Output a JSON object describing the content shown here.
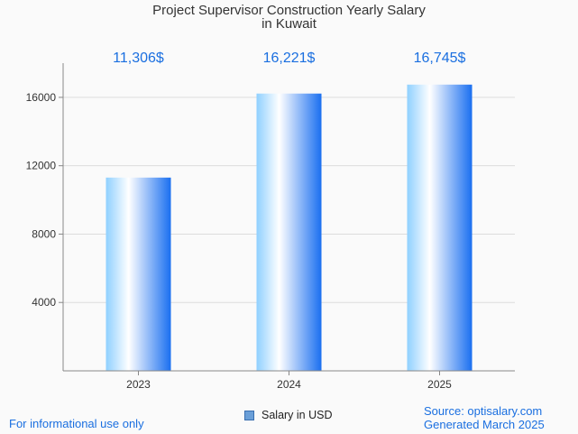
{
  "colors": {
    "label": "#1a6fe0",
    "bar_light": "#ffffff",
    "bar_mid": "#8fd0ff",
    "bar_dark": "#1a6ff0",
    "grid": "#dddddd",
    "axis": "#888888",
    "tick_text": "#333333"
  },
  "chart_data": {
    "type": "bar",
    "title_lines": [
      "Project Supervisor Construction Yearly Salary",
      "in Kuwait"
    ],
    "categories": [
      "2023",
      "2024",
      "2025"
    ],
    "values": [
      11306,
      16221,
      16745
    ],
    "value_labels": [
      "11,306$",
      "16,221$",
      "16,745$"
    ],
    "ylim": [
      0,
      18000
    ],
    "yticks": [
      4000,
      8000,
      12000,
      16000
    ],
    "ytick_labels": [
      "4000",
      "8000",
      "12000",
      "16000"
    ],
    "xlabel": "",
    "ylabel": "",
    "grid": true,
    "legend": {
      "label": "Salary in USD",
      "position": "bottom-center"
    }
  },
  "footer": {
    "note": "For informational use only",
    "source": "Source: optisalary.com",
    "generated": "Generated March 2025"
  }
}
